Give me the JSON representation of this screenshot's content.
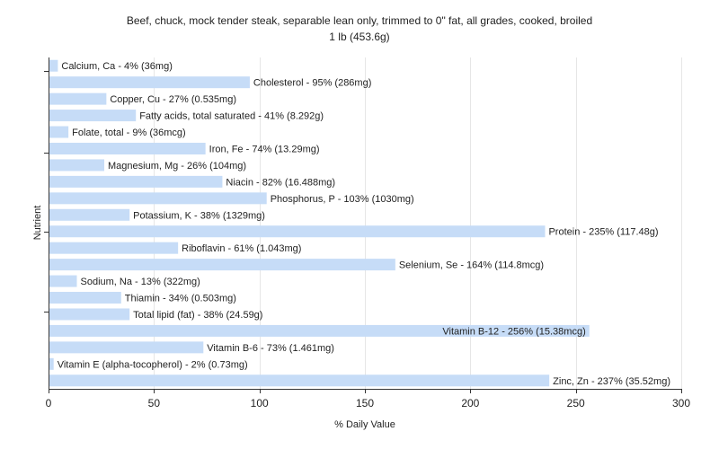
{
  "chart_data": {
    "type": "bar",
    "orientation": "horizontal",
    "title_line1": "Beef, chuck, mock tender steak, separable lean only, trimmed to 0\" fat, all grades, cooked, broiled",
    "title_line2": "1 lb (453.6g)",
    "xlabel": "% Daily Value",
    "ylabel": "Nutrient",
    "xlim": [
      0,
      300
    ],
    "xticks": [
      0,
      50,
      100,
      150,
      200,
      250,
      300
    ],
    "grid": true,
    "bar_color": "#c6dcf7",
    "categories": [
      "Calcium, Ca",
      "Cholesterol",
      "Copper, Cu",
      "Fatty acids, total saturated",
      "Folate, total",
      "Iron, Fe",
      "Magnesium, Mg",
      "Niacin",
      "Phosphorus, P",
      "Potassium, K",
      "Protein",
      "Riboflavin",
      "Selenium, Se",
      "Sodium, Na",
      "Thiamin",
      "Total lipid (fat)",
      "Vitamin B-12",
      "Vitamin B-6",
      "Vitamin E (alpha-tocopherol)",
      "Zinc, Zn"
    ],
    "values": [
      4,
      95,
      27,
      41,
      9,
      74,
      26,
      82,
      103,
      38,
      235,
      61,
      164,
      13,
      34,
      38,
      256,
      73,
      2,
      237
    ],
    "labels": [
      "Calcium, Ca - 4% (36mg)",
      "Cholesterol - 95% (286mg)",
      "Copper, Cu - 27% (0.535mg)",
      "Fatty acids, total saturated - 41% (8.292g)",
      "Folate, total - 9% (36mcg)",
      "Iron, Fe - 74% (13.29mg)",
      "Magnesium, Mg - 26% (104mg)",
      "Niacin - 82% (16.488mg)",
      "Phosphorus, P - 103% (1030mg)",
      "Potassium, K - 38% (1329mg)",
      "Protein - 235% (117.48g)",
      "Riboflavin - 61% (1.043mg)",
      "Selenium, Se - 164% (114.8mcg)",
      "Sodium, Na - 13% (322mg)",
      "Thiamin - 34% (0.503mg)",
      "Total lipid (fat) - 38% (24.59g)",
      "Vitamin B-12 - 256% (15.38mcg)",
      "Vitamin B-6 - 73% (1.461mg)",
      "Vitamin E (alpha-tocopherol) - 2% (0.73mg)",
      "Zinc, Zn - 237% (35.52mg)"
    ]
  }
}
